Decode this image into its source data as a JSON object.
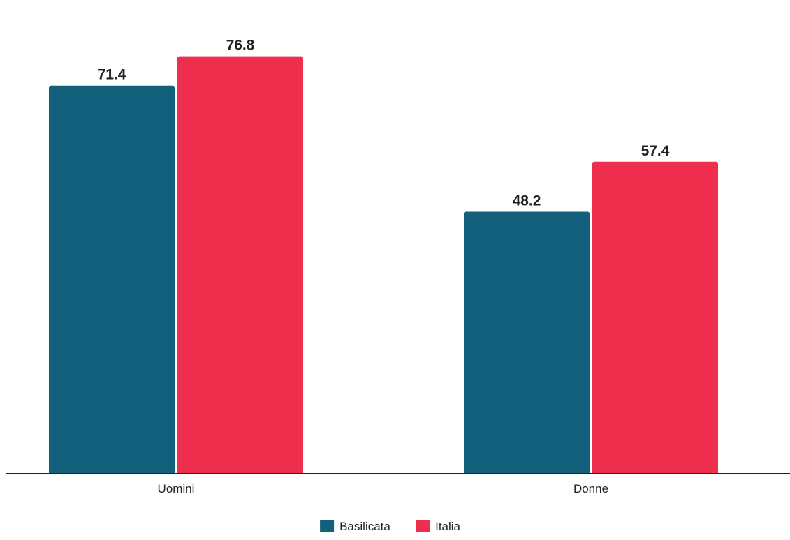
{
  "chart_data": {
    "type": "bar",
    "categories": [
      "Uomini",
      "Donne"
    ],
    "series": [
      {
        "name": "Basilicata",
        "values": [
          71.4,
          48.2
        ],
        "color": "#13607c"
      },
      {
        "name": "Italia",
        "values": [
          76.8,
          57.4
        ],
        "color": "#ed2e4c"
      }
    ],
    "ylim": [
      0,
      81.5
    ],
    "data_labels": true,
    "grid": false,
    "legend_position": "bottom-center",
    "baseline_color": "#222222"
  }
}
